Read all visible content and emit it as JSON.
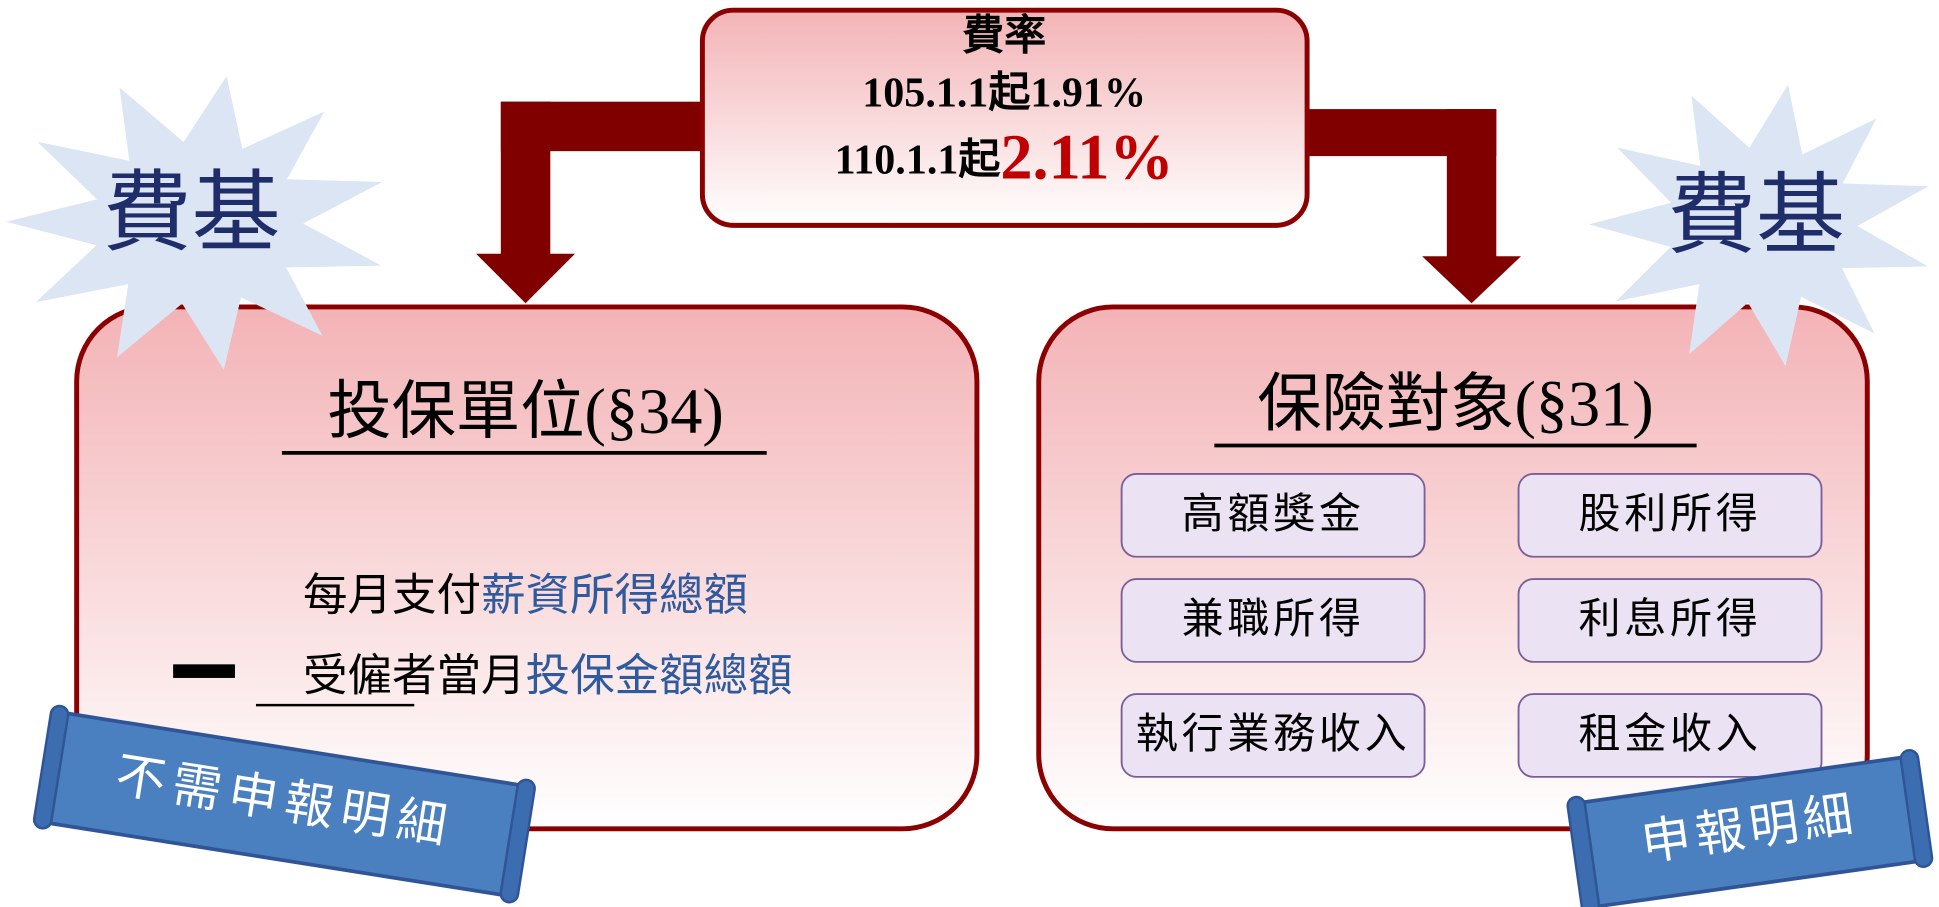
{
  "rate": {
    "title": "費率",
    "line1": "105.1.1起1.91%",
    "line2_prefix": "110.1.1起",
    "line2_rate": "2.11%"
  },
  "left_star": "費基",
  "right_star": "費基",
  "employer": {
    "title": "投保單位(§34)",
    "line1": [
      "每月支付",
      "薪資所得總額"
    ],
    "line2": [
      "受僱者",
      "當月",
      "投保金額總額"
    ],
    "ribbon": "不需申報明細"
  },
  "insured": {
    "title": "保險對象(§31)",
    "items": [
      "高額獎金",
      "股利所得",
      "兼職所得",
      "利息所得",
      "執行業務收入",
      "租金收入"
    ],
    "ribbon": "申報明細"
  }
}
